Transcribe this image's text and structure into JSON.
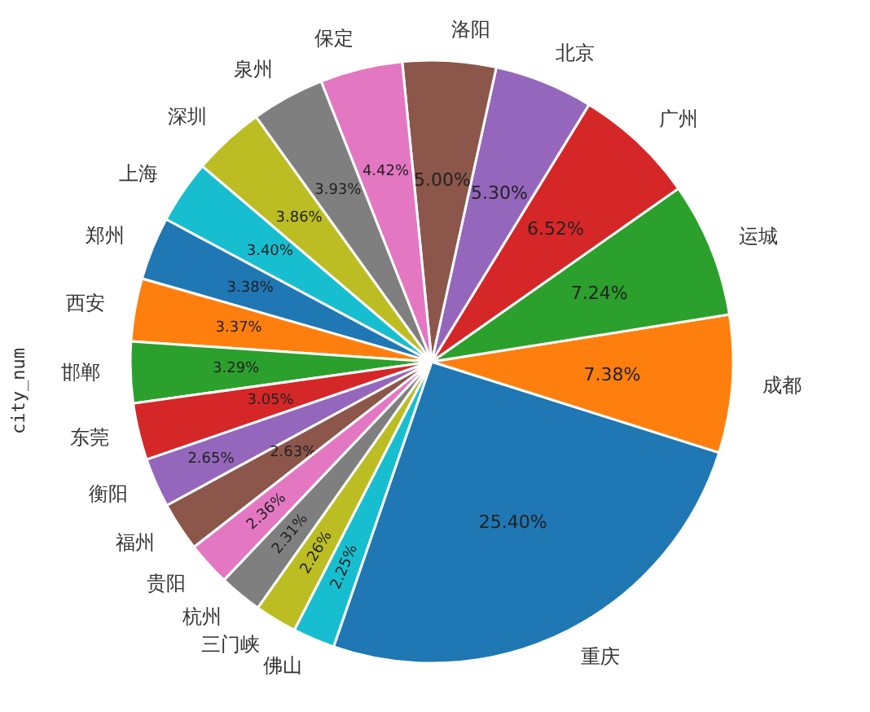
{
  "chart_data": {
    "type": "pie",
    "ylabel": "city_num",
    "categories": [
      "重庆",
      "成都",
      "运城",
      "广州",
      "北京",
      "洛阳",
      "保定",
      "泉州",
      "深圳",
      "上海",
      "郑州",
      "西安",
      "邯郸",
      "东莞",
      "衡阳",
      "福州",
      "贵阳",
      "杭州",
      "三门峡",
      "佛山"
    ],
    "values": [
      25.4,
      7.38,
      7.24,
      6.52,
      5.3,
      5.0,
      4.42,
      3.93,
      3.86,
      3.4,
      3.38,
      3.37,
      3.29,
      3.05,
      2.65,
      2.63,
      2.36,
      2.31,
      2.26,
      2.25
    ],
    "value_labels": [
      "25.40%",
      "7.38%",
      "7.24%",
      "6.52%",
      "5.30%",
      "5.00%",
      "4.42%",
      "3.93%",
      "3.86%",
      "3.40%",
      "3.38%",
      "3.37%",
      "3.29%",
      "3.05%",
      "2.65%",
      "2.63%",
      "2.36%",
      "2.31%",
      "2.26%",
      "2.25%"
    ],
    "colors": [
      "#1f77b4",
      "#ff7f0e",
      "#2ca02c",
      "#d62728",
      "#9467bd",
      "#8c564b",
      "#e377c2",
      "#7f7f7f",
      "#bcbd22",
      "#17becf",
      "#1f77b4",
      "#ff7f0e",
      "#2ca02c",
      "#d62728",
      "#9467bd",
      "#8c564b",
      "#e377c2",
      "#7f7f7f",
      "#bcbd22",
      "#17becf"
    ]
  }
}
